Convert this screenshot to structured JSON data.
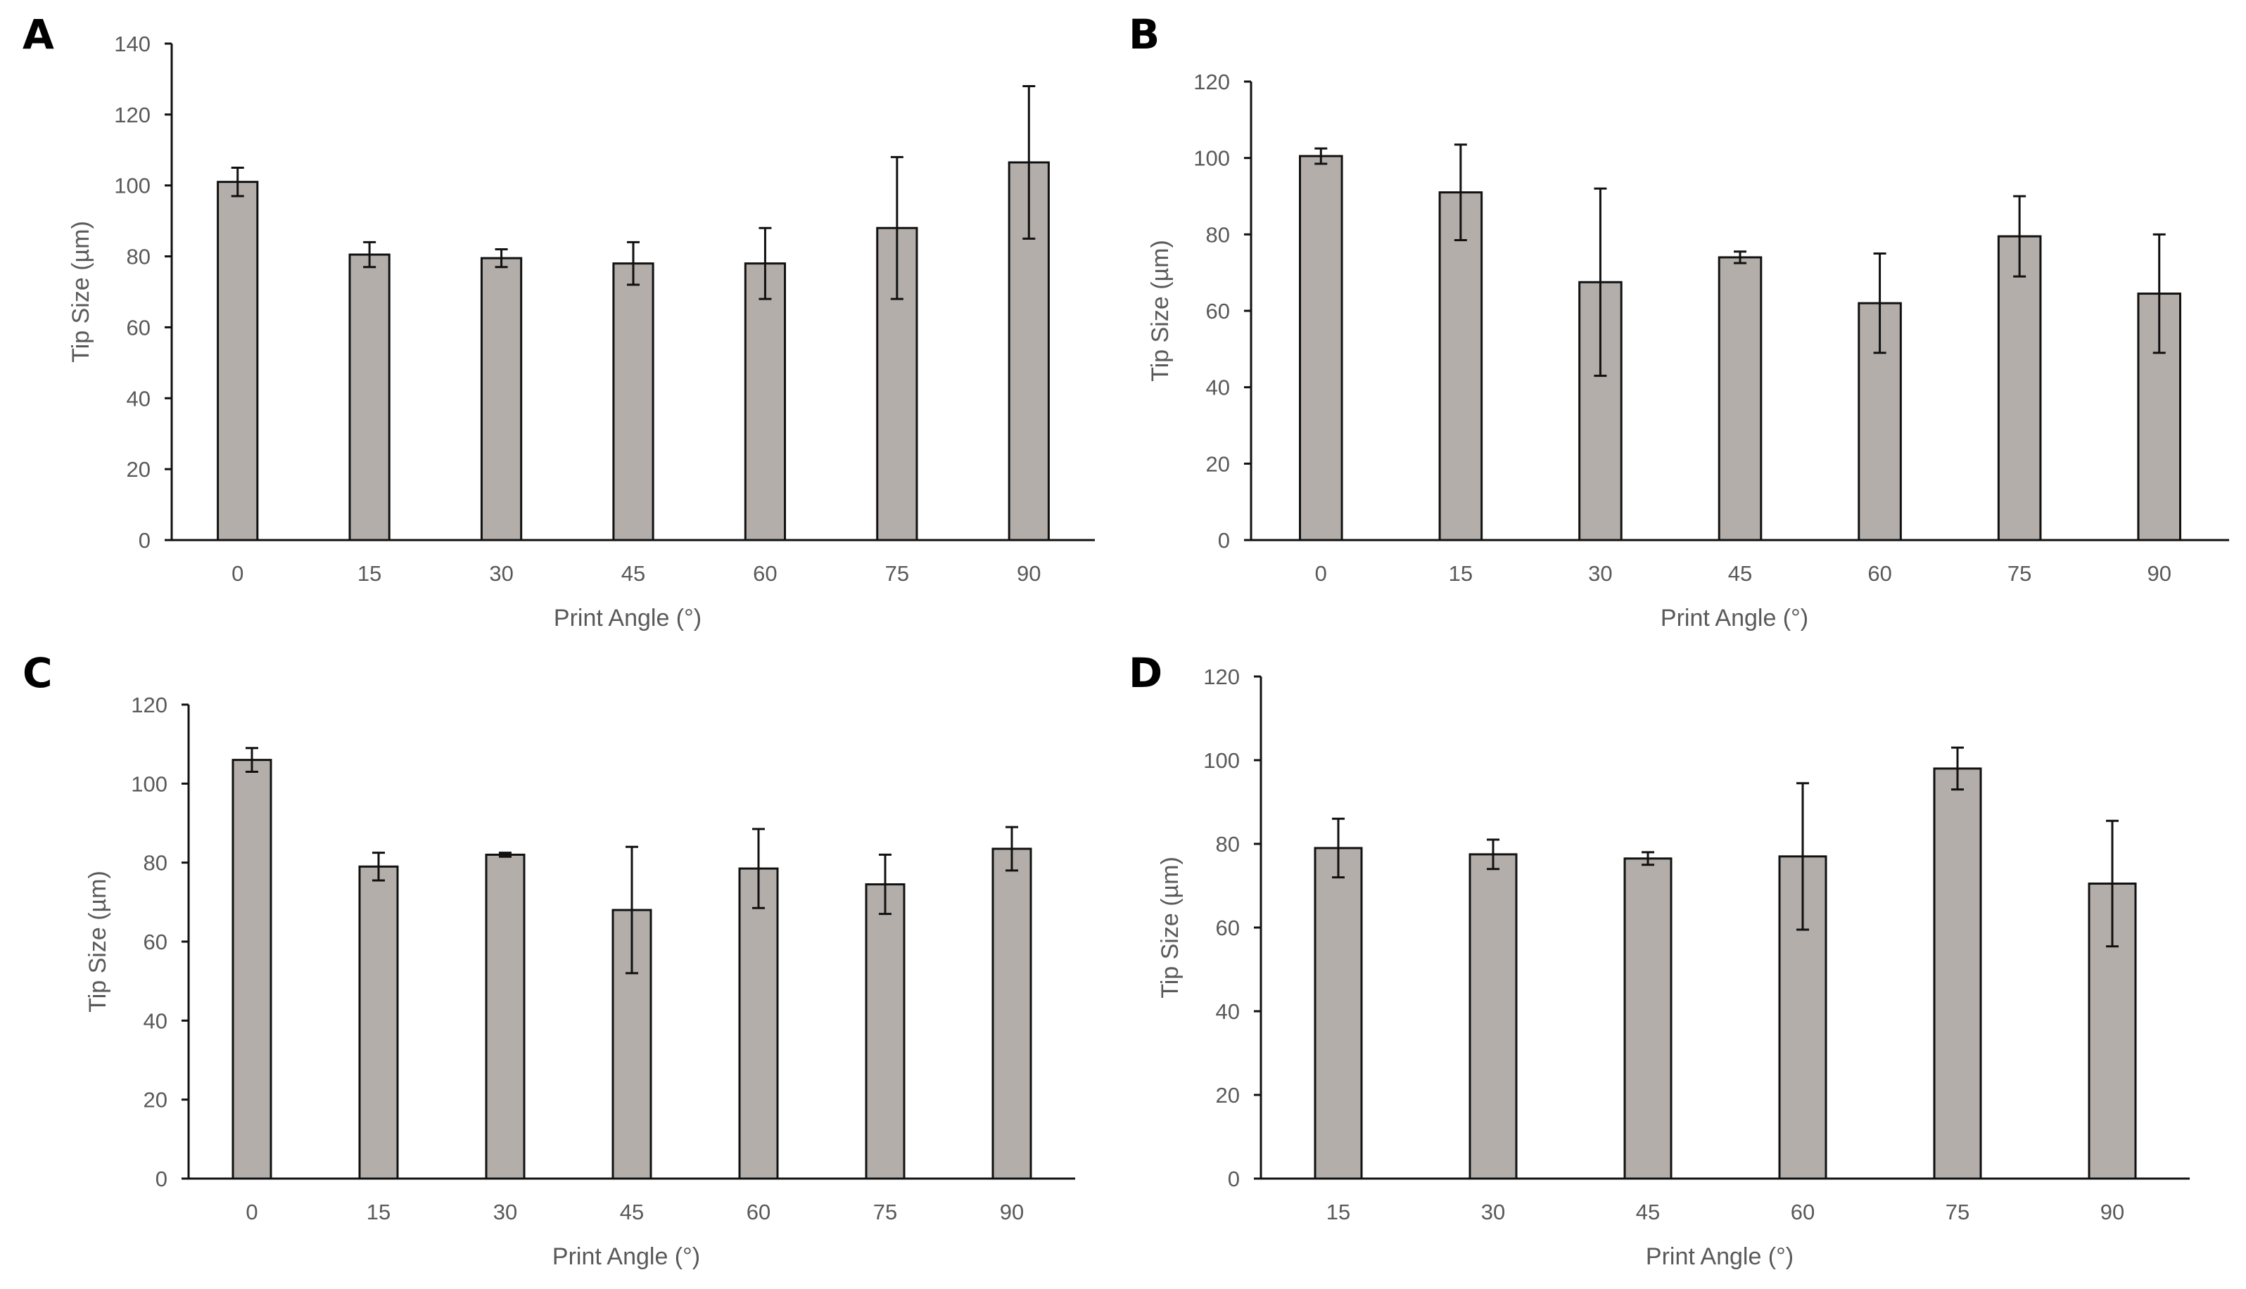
{
  "colors": {
    "bar_fill": "#b3aeaa",
    "bar_stroke": "#111111",
    "axis": "#111111",
    "text": "#595959"
  },
  "chart_data": [
    {
      "panel": "A",
      "type": "bar",
      "title": "",
      "xlabel": "Print Angle (°)",
      "ylabel": "Tip Size (µm)",
      "categories": [
        "0",
        "15",
        "30",
        "45",
        "60",
        "75",
        "90"
      ],
      "values": [
        101,
        80.5,
        79.5,
        78,
        78,
        88,
        106.5
      ],
      "errors": [
        4,
        3.5,
        2.5,
        6,
        10,
        20,
        21.5
      ],
      "ylim": [
        0,
        140
      ],
      "yticks": [
        0,
        20,
        40,
        60,
        80,
        100,
        120,
        140
      ]
    },
    {
      "panel": "B",
      "type": "bar",
      "title": "",
      "xlabel": "Print Angle (°)",
      "ylabel": "Tip Size (µm)",
      "categories": [
        "0",
        "15",
        "30",
        "45",
        "60",
        "75",
        "90"
      ],
      "values": [
        100.5,
        91,
        67.5,
        74,
        62,
        79.5,
        64.5
      ],
      "errors": [
        2,
        12.5,
        24.5,
        1.5,
        13,
        10.5,
        15.5
      ],
      "ylim": [
        0,
        120
      ],
      "yticks": [
        0,
        20,
        40,
        60,
        80,
        100,
        120
      ]
    },
    {
      "panel": "C",
      "type": "bar",
      "title": "",
      "xlabel": "Print Angle (°)",
      "ylabel": "Tip Size (µm)",
      "categories": [
        "0",
        "15",
        "30",
        "45",
        "60",
        "75",
        "90"
      ],
      "values": [
        106,
        79,
        82,
        68,
        78.5,
        74.5,
        83.5
      ],
      "errors": [
        3,
        3.5,
        0.5,
        16,
        10,
        7.5,
        5.5
      ],
      "ylim": [
        0,
        120
      ],
      "yticks": [
        0,
        20,
        40,
        60,
        80,
        100,
        120
      ]
    },
    {
      "panel": "D",
      "type": "bar",
      "title": "",
      "xlabel": "Print Angle (°)",
      "ylabel": "Tip Size (µm)",
      "categories": [
        "15",
        "30",
        "45",
        "60",
        "75",
        "90"
      ],
      "values": [
        79,
        77.5,
        76.5,
        77,
        98,
        70.5
      ],
      "errors": [
        7,
        3.5,
        1.5,
        17.5,
        5,
        15
      ],
      "ylim": [
        0,
        120
      ],
      "yticks": [
        0,
        20,
        40,
        60,
        80,
        100,
        120
      ]
    }
  ]
}
